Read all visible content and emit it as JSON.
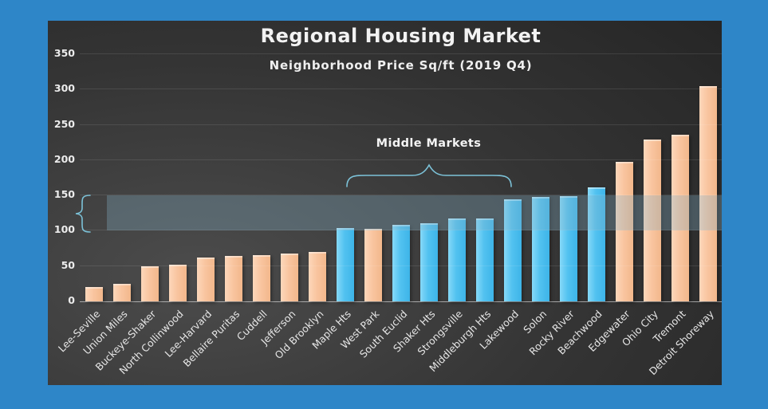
{
  "chart_data": {
    "type": "bar",
    "title": "Regional Housing Market",
    "subtitle": "Neighborhood Price Sq/ft (2019 Q4)",
    "xlabel": "",
    "ylabel": "",
    "ylim": [
      0,
      350
    ],
    "yticks": [
      0,
      50,
      100,
      150,
      200,
      250,
      300,
      350
    ],
    "grid": true,
    "legend": "none",
    "bars": [
      {
        "name": "Lee-Seville",
        "value": 20,
        "color_group": "peach"
      },
      {
        "name": "Union Miles",
        "value": 25,
        "color_group": "peach"
      },
      {
        "name": "Buckeye-Shaker",
        "value": 50,
        "color_group": "peach"
      },
      {
        "name": "North Collinwood",
        "value": 52,
        "color_group": "peach"
      },
      {
        "name": "Lee-Harvard",
        "value": 62,
        "color_group": "peach"
      },
      {
        "name": "Bellaire Puritas",
        "value": 64,
        "color_group": "peach"
      },
      {
        "name": "Cuddell",
        "value": 66,
        "color_group": "peach"
      },
      {
        "name": "Jefferson",
        "value": 68,
        "color_group": "peach"
      },
      {
        "name": "Old Brooklyn",
        "value": 70,
        "color_group": "peach"
      },
      {
        "name": "Maple Hts",
        "value": 104,
        "color_group": "blue"
      },
      {
        "name": "West Park",
        "value": 103,
        "color_group": "peach"
      },
      {
        "name": "South Euclid",
        "value": 108,
        "color_group": "blue"
      },
      {
        "name": "Shaker Hts",
        "value": 111,
        "color_group": "blue"
      },
      {
        "name": "Strongsville",
        "value": 117,
        "color_group": "blue"
      },
      {
        "name": "Middleburgh Hts",
        "value": 117,
        "color_group": "blue"
      },
      {
        "name": "Lakewood",
        "value": 145,
        "color_group": "blue"
      },
      {
        "name": "Solon",
        "value": 148,
        "color_group": "blue"
      },
      {
        "name": "Rocky River",
        "value": 149,
        "color_group": "blue"
      },
      {
        "name": "Beachwood",
        "value": 162,
        "color_group": "blue"
      },
      {
        "name": "Edgewater",
        "value": 198,
        "color_group": "peach"
      },
      {
        "name": "Ohio City",
        "value": 229,
        "color_group": "peach"
      },
      {
        "name": "Tremont",
        "value": 236,
        "color_group": "peach"
      },
      {
        "name": "Detroit Shoreway",
        "value": 305,
        "color_group": "peach"
      }
    ],
    "annotations": {
      "middle_markets_label": "Middle Markets",
      "middle_markets_span": [
        "Maple Hts",
        "Lakewood"
      ],
      "y_highlight_band": {
        "from": 100,
        "to": 150
      }
    },
    "colors": {
      "frame": "#2e86c8",
      "bar_city": "#f9c5a0",
      "bar_city_light": "#fdd7ba",
      "bar_city_dark": "#f2b78b",
      "bar_suburb": "#52c2f0",
      "bar_suburb_light": "#86d9f8",
      "bar_suburb_dark": "#3db4e8",
      "band": "rgba(134,178,198,0.32)",
      "brace": "#7cc2d8",
      "text": "#f2f2f2"
    }
  }
}
